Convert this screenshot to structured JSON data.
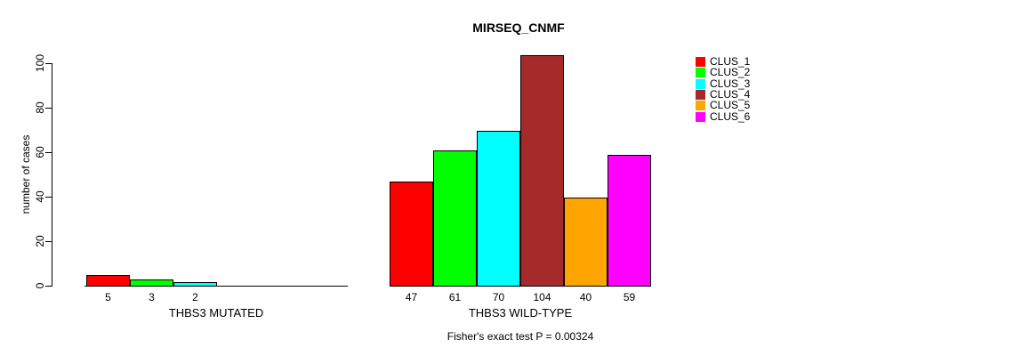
{
  "chart_data": {
    "type": "bar",
    "title": "MIRSEQ_CNMF",
    "ylabel": "number of cases",
    "xlabel": "",
    "ylim": [
      0,
      100
    ],
    "yticks": [
      0,
      20,
      40,
      60,
      80,
      100
    ],
    "grid": false,
    "legend_position": "right-top",
    "series": [
      {
        "name": "CLUS_1",
        "color": "#FF0000"
      },
      {
        "name": "CLUS_2",
        "color": "#00FF00"
      },
      {
        "name": "CLUS_3",
        "color": "#00FFFF"
      },
      {
        "name": "CLUS_4",
        "color": "#A52A2A"
      },
      {
        "name": "CLUS_5",
        "color": "#FFA500"
      },
      {
        "name": "CLUS_6",
        "color": "#FF00FF"
      }
    ],
    "groups": [
      {
        "label": "THBS3 MUTATED",
        "values": [
          5,
          3,
          2,
          0,
          0,
          0
        ]
      },
      {
        "label": "THBS3 WILD-TYPE",
        "values": [
          47,
          61,
          70,
          104,
          40,
          59
        ]
      }
    ],
    "annotation": "Fisher's exact test P = 0.00324"
  }
}
